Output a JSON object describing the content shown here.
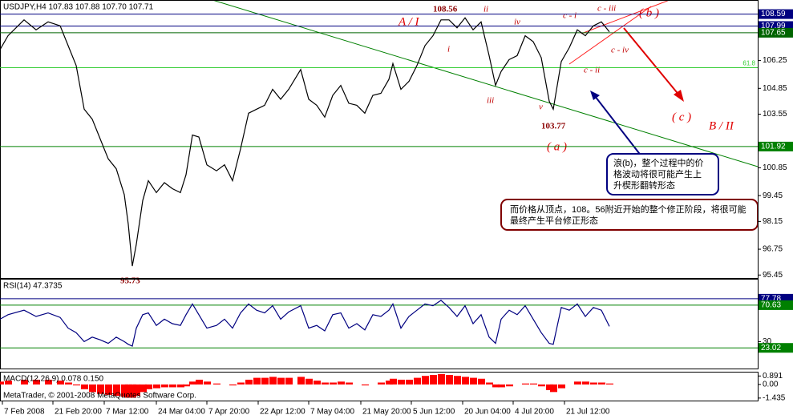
{
  "chart_data": [
    {
      "type": "line",
      "title": "USDJPY,H4  107.83 107.88 107.70 107.71",
      "color": "#000000",
      "x": [
        0,
        1,
        3,
        4.5,
        6,
        7.5,
        8.5,
        9.5,
        10.5,
        11.5,
        12.5,
        13.5,
        14.5,
        15.5,
        16,
        16.5,
        17,
        17.8,
        18.5,
        19.5,
        20.5,
        21.5,
        22.5,
        23.2,
        24,
        24.8,
        25.8,
        27,
        28,
        29,
        30,
        31,
        32,
        33,
        34,
        35,
        36,
        37.5,
        38.5,
        39.5,
        40.5,
        41.5,
        42.5,
        43.5,
        44.5,
        45.5,
        46.5,
        47.5,
        48.5,
        49,
        50,
        51,
        52,
        53,
        54,
        55,
        56,
        57,
        58,
        59,
        60,
        61,
        61.8,
        62.5,
        63.5,
        64.5,
        65.5,
        66.5,
        67.5,
        68.5,
        69,
        70,
        71,
        72,
        73,
        74,
        75,
        76
      ],
      "values": [
        106.8,
        107.5,
        108.3,
        107.8,
        108.2,
        108.0,
        107.0,
        106.0,
        103.8,
        103.3,
        102.3,
        101.3,
        100.8,
        99.5,
        98.0,
        95.9,
        97.0,
        99.2,
        100.2,
        99.6,
        100.1,
        99.8,
        99.6,
        100.5,
        102.5,
        102.4,
        101.0,
        100.7,
        101.0,
        100.2,
        101.8,
        103.6,
        103.8,
        104.0,
        104.8,
        104.3,
        104.8,
        105.8,
        104.3,
        104.0,
        103.4,
        104.5,
        105.0,
        104.1,
        104.0,
        103.6,
        104.5,
        104.6,
        105.3,
        106.1,
        104.8,
        105.2,
        106.0,
        107.0,
        107.5,
        108.3,
        108.3,
        107.9,
        108.4,
        107.8,
        108.2,
        106.5,
        105.0,
        105.7,
        106.3,
        106.5,
        107.5,
        107.2,
        106.4,
        104.2,
        103.8,
        106.2,
        106.9,
        107.8,
        107.5,
        108.0,
        108.2,
        107.7
      ],
      "xlim": [
        0,
        94.5
      ],
      "xticks": [
        {
          "value": 0.3,
          "label": "7 Feb 2008"
        },
        {
          "value": 6.6,
          "label": "21 Feb 20:00"
        },
        {
          "value": 13,
          "label": "7 Mar 12:00"
        },
        {
          "value": 19.5,
          "label": "24 Mar 04:00"
        },
        {
          "value": 25.8,
          "label": "7 Apr 20:00"
        },
        {
          "value": 32.2,
          "label": "22 Apr 12:00"
        },
        {
          "value": 38.5,
          "label": "7 May 04:00"
        },
        {
          "value": 45,
          "label": "21 May 20:00"
        },
        {
          "value": 51.3,
          "label": "5 Jun 12:00"
        },
        {
          "value": 57.7,
          "label": "20 Jun 04:00"
        },
        {
          "value": 64,
          "label": "4 Jul 20:00"
        },
        {
          "value": 70.4,
          "label": "21 Jul 12:00"
        }
      ],
      "ylim": [
        95.3,
        109.3
      ],
      "yticks": [
        106.25,
        104.85,
        103.55,
        100.85,
        99.45,
        98.15,
        96.75,
        95.45
      ],
      "levels": [
        {
          "value": 108.59,
          "color": "#000080"
        },
        {
          "value": 107.99,
          "color": "#000080"
        },
        {
          "value": 107.65,
          "color": "#006400"
        },
        {
          "value": 101.92,
          "color": "#008000"
        }
      ],
      "fibonacci": {
        "value": 105.89,
        "label": "61.8",
        "color": "#33cc33"
      },
      "annotations": [
        "A / I",
        "108.56",
        "ii",
        "iv",
        "c - i",
        "c - iii",
        "( b )",
        "i",
        "iii",
        "v",
        "103.77",
        "c - ii",
        "c - iv",
        "( c )",
        "B / II",
        "( a )",
        "95.73"
      ],
      "notes": [
        [
          "浪(b)，整个过程中的价",
          "格波动将很可能产生上",
          "升楔形翻转形态"
        ],
        [
          "而价格从顶点，108。56附近开始的整个修正阶段，将很可能",
          "最终产生平台修正形态"
        ]
      ]
    },
    {
      "type": "line",
      "title": "RSI(14) 47.3735",
      "color": "#000080",
      "values": [
        55,
        60,
        65,
        58,
        62,
        57,
        45,
        40,
        30,
        35,
        32,
        28,
        35,
        30,
        27,
        25,
        45,
        60,
        62,
        48,
        55,
        50,
        48,
        60,
        72,
        60,
        45,
        48,
        55,
        45,
        62,
        72,
        65,
        62,
        70,
        55,
        63,
        70,
        45,
        48,
        42,
        60,
        62,
        45,
        50,
        43,
        60,
        58,
        65,
        72,
        45,
        58,
        65,
        72,
        70,
        76,
        68,
        58,
        70,
        50,
        60,
        35,
        28,
        55,
        65,
        60,
        70,
        55,
        40,
        28,
        27,
        68,
        65,
        72,
        58,
        68,
        65,
        47
      ],
      "ylim": [
        0,
        100
      ],
      "yticks": [
        30
      ],
      "levels": [
        {
          "value": 77.78,
          "color": "#000080"
        },
        {
          "value": 70.63,
          "color": "#008000"
        },
        {
          "value": 23.02,
          "color": "#008000"
        }
      ]
    },
    {
      "type": "bar",
      "title": "MACD(12,26,9) 0.078 0.150",
      "color": "#ff0000",
      "values": [
        0.3,
        0.4,
        0.5,
        0.5,
        0.5,
        0.4,
        0.2,
        -0.1,
        -0.5,
        -0.8,
        -1.0,
        -1.1,
        -1.2,
        -1.3,
        -1.4,
        -1.4,
        -1.2,
        -0.8,
        -0.5,
        -0.4,
        -0.3,
        -0.3,
        -0.3,
        -0.2,
        0.3,
        0.5,
        0.3,
        0.1,
        0.0,
        -0.1,
        0.2,
        0.5,
        0.7,
        0.7,
        0.8,
        0.7,
        0.7,
        0.8,
        0.6,
        0.4,
        0.2,
        0.2,
        0.3,
        0.2,
        0.0,
        -0.1,
        0.0,
        0.2,
        0.4,
        0.6,
        0.5,
        0.5,
        0.7,
        0.9,
        1.0,
        1.1,
        1.0,
        0.9,
        0.8,
        0.7,
        0.6,
        0.2,
        -0.3,
        -0.3,
        -0.2,
        0.0,
        0.1,
        0.1,
        -0.2,
        -0.6,
        -0.8,
        -0.4,
        0.0,
        0.3,
        0.3,
        0.2,
        0.2,
        0.1
      ],
      "ylim": [
        -1.7,
        1.34
      ],
      "yticks": [
        0.891,
        {
          "value": 0,
          "label": "0.00"
        },
        -1.435
      ],
      "footer": "MetaTrader, © 2001-2008 MetaQuotes Software Corp."
    }
  ]
}
